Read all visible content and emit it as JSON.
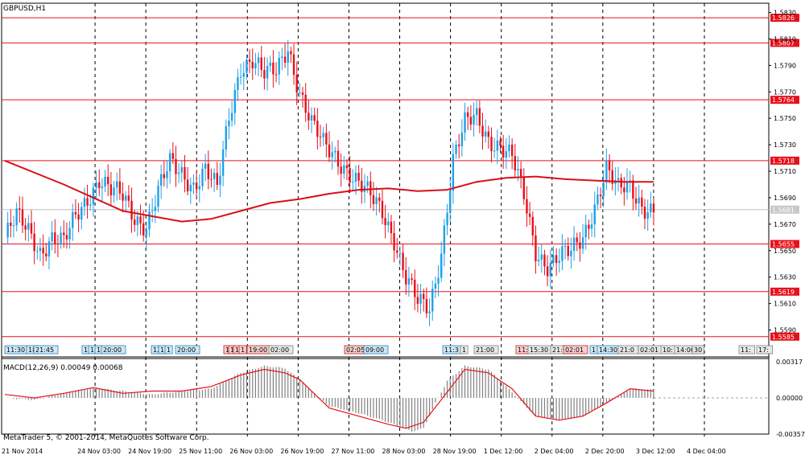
{
  "symbol": "GBPUSD,H1",
  "indicator_label": "MACD(12,26,9) 0.00049 0.00068",
  "copyright": "MetaTrader 5, © 2001-2014, MetaQuotes Software Corp.",
  "colors": {
    "bull": "#1ea0e8",
    "bear": "#e8101a",
    "level_line": "#e8101a",
    "ma_line": "#d81018",
    "signal_line": "#e8101a",
    "histogram": "#808080",
    "grid": "#000000"
  },
  "chart_data": [
    {
      "type": "candlestick",
      "timeframe": "H1",
      "x_labels": [
        "21 Nov 2014",
        "24 Nov 03:00",
        "24 Nov 19:00",
        "25 Nov 11:00",
        "26 Nov 03:00",
        "26 Nov 19:00",
        "27 Nov 11:00",
        "28 Nov 03:00",
        "28 Nov 19:00",
        "1 Dec 12:00",
        "2 Dec 04:00",
        "2 Dec 20:00",
        "3 Dec 12:00",
        "4 Dec 04:00"
      ],
      "y_ticks": [
        "1.5830",
        "1.5810",
        "1.5790",
        "1.5770",
        "1.5750",
        "1.5730",
        "1.5710",
        "1.5690",
        "1.5670",
        "1.5650",
        "1.5630",
        "1.5610",
        "1.5590"
      ],
      "ylim": [
        1.558,
        1.5837
      ],
      "levels": [
        {
          "label": "1.5826",
          "value": 1.5826
        },
        {
          "label": "1.5807",
          "value": 1.5807
        },
        {
          "label": "1.5764",
          "value": 1.5764
        },
        {
          "label": "1.5718",
          "value": 1.5718
        },
        {
          "label": "1.5655",
          "value": 1.5655
        },
        {
          "label": "1.5619",
          "value": 1.5619
        },
        {
          "label": "1.5585",
          "value": 1.5585
        }
      ],
      "current_price": {
        "label": "1.5681",
        "value": 1.5681
      },
      "close_path": [
        [
          0,
          1.566
        ],
        [
          4,
          1.5675
        ],
        [
          8,
          1.5665
        ],
        [
          12,
          1.565
        ],
        [
          16,
          1.566
        ],
        [
          20,
          1.5655
        ],
        [
          24,
          1.5675
        ],
        [
          28,
          1.569
        ],
        [
          32,
          1.5705
        ],
        [
          36,
          1.5695
        ],
        [
          40,
          1.569
        ],
        [
          44,
          1.5675
        ],
        [
          48,
          1.567
        ],
        [
          52,
          1.5695
        ],
        [
          56,
          1.5715
        ],
        [
          60,
          1.5708
        ],
        [
          64,
          1.57
        ],
        [
          68,
          1.5712
        ],
        [
          72,
          1.5695
        ],
        [
          76,
          1.575
        ],
        [
          80,
          1.579
        ],
        [
          84,
          1.5795
        ],
        [
          88,
          1.5782
        ],
        [
          92,
          1.5785
        ],
        [
          96,
          1.5805
        ],
        [
          100,
          1.577
        ],
        [
          104,
          1.5745
        ],
        [
          108,
          1.573
        ],
        [
          112,
          1.5722
        ],
        [
          116,
          1.5712
        ],
        [
          120,
          1.57
        ],
        [
          124,
          1.569
        ],
        [
          128,
          1.568
        ],
        [
          132,
          1.566
        ],
        [
          136,
          1.563
        ],
        [
          140,
          1.561
        ],
        [
          144,
          1.5605
        ],
        [
          148,
          1.565
        ],
        [
          152,
          1.572
        ],
        [
          156,
          1.5745
        ],
        [
          160,
          1.575
        ],
        [
          164,
          1.5735
        ],
        [
          168,
          1.573
        ],
        [
          172,
          1.572
        ],
        [
          176,
          1.569
        ],
        [
          180,
          1.565
        ],
        [
          184,
          1.564
        ],
        [
          188,
          1.5645
        ],
        [
          192,
          1.5648
        ],
        [
          196,
          1.566
        ],
        [
          200,
          1.5685
        ],
        [
          204,
          1.5712
        ],
        [
          208,
          1.5695
        ],
        [
          212,
          1.5698
        ],
        [
          216,
          1.5685
        ],
        [
          220,
          1.5681
        ]
      ],
      "moving_average": [
        [
          0,
          1.5718
        ],
        [
          20,
          1.57
        ],
        [
          40,
          1.568
        ],
        [
          60,
          1.5672
        ],
        [
          70,
          1.5674
        ],
        [
          80,
          1.568
        ],
        [
          90,
          1.5686
        ],
        [
          100,
          1.5689
        ],
        [
          110,
          1.5693
        ],
        [
          120,
          1.5696
        ],
        [
          130,
          1.5697
        ],
        [
          140,
          1.5695
        ],
        [
          150,
          1.5696
        ],
        [
          160,
          1.5702
        ],
        [
          170,
          1.5705
        ],
        [
          180,
          1.5706
        ],
        [
          190,
          1.5704
        ],
        [
          200,
          1.5703
        ],
        [
          210,
          1.5702
        ],
        [
          220,
          1.5702
        ]
      ]
    },
    {
      "type": "bar+line",
      "title": "MACD(12,26,9) 0.00049 0.00068",
      "y_ticks": [
        "0.00317",
        "0.00000",
        "-0.00357"
      ],
      "ylim": [
        -0.00357,
        0.00317
      ],
      "histogram": [
        [
          0,
          0.0
        ],
        [
          10,
          -0.0002
        ],
        [
          20,
          0.0004
        ],
        [
          30,
          0.0009
        ],
        [
          40,
          0.0006
        ],
        [
          50,
          0.0003
        ],
        [
          60,
          0.0006
        ],
        [
          70,
          0.0008
        ],
        [
          80,
          0.0022
        ],
        [
          88,
          0.0028
        ],
        [
          95,
          0.0026
        ],
        [
          100,
          0.0016
        ],
        [
          110,
          -0.0008
        ],
        [
          120,
          -0.0015
        ],
        [
          130,
          -0.0024
        ],
        [
          138,
          -0.0033
        ],
        [
          142,
          -0.003
        ],
        [
          146,
          -0.0005
        ],
        [
          150,
          0.0015
        ],
        [
          156,
          0.0028
        ],
        [
          164,
          0.0025
        ],
        [
          172,
          0.0005
        ],
        [
          180,
          -0.0018
        ],
        [
          188,
          -0.0022
        ],
        [
          196,
          -0.0018
        ],
        [
          204,
          -0.0005
        ],
        [
          212,
          0.0008
        ],
        [
          220,
          0.0007
        ]
      ],
      "signal": [
        [
          0,
          0.0003
        ],
        [
          10,
          0.0
        ],
        [
          20,
          0.0004
        ],
        [
          30,
          0.0009
        ],
        [
          40,
          0.0004
        ],
        [
          50,
          0.0006
        ],
        [
          60,
          0.0006
        ],
        [
          70,
          0.001
        ],
        [
          80,
          0.002
        ],
        [
          88,
          0.0025
        ],
        [
          95,
          0.0022
        ],
        [
          100,
          0.0016
        ],
        [
          110,
          -0.001
        ],
        [
          120,
          -0.0018
        ],
        [
          130,
          -0.0026
        ],
        [
          136,
          -0.003
        ],
        [
          142,
          -0.0024
        ],
        [
          150,
          0.0005
        ],
        [
          156,
          0.0025
        ],
        [
          164,
          0.0022
        ],
        [
          172,
          0.0008
        ],
        [
          180,
          -0.0018
        ],
        [
          188,
          -0.0022
        ],
        [
          196,
          -0.0018
        ],
        [
          204,
          -0.0005
        ],
        [
          212,
          0.0008
        ],
        [
          220,
          0.0006
        ]
      ]
    }
  ],
  "event_markers": [
    {
      "text": "11:30",
      "theme": "blue"
    },
    {
      "text": "18",
      "theme": "blue"
    },
    {
      "text": "21:45",
      "theme": "blue"
    },
    {
      "text": "1",
      "theme": "blue"
    },
    {
      "text": "1",
      "theme": "blue"
    },
    {
      "text": "1",
      "theme": "blue"
    },
    {
      "text": "20:00",
      "theme": "blue"
    },
    {
      "text": "12",
      "theme": "blue"
    },
    {
      "text": "1",
      "theme": "blue"
    },
    {
      "text": "1",
      "theme": "blue"
    },
    {
      "text": "20:00",
      "theme": "blue"
    },
    {
      "text": "1",
      "theme": "red"
    },
    {
      "text": "1",
      "theme": "red"
    },
    {
      "text": "1",
      "theme": "red"
    },
    {
      "text": "1",
      "theme": "red"
    },
    {
      "text": "19:00",
      "theme": "red"
    },
    {
      "text": "02:00",
      "theme": "gray"
    },
    {
      "text": "02:05",
      "theme": "red"
    },
    {
      "text": "09:00",
      "theme": "blue"
    },
    {
      "text": "11:3",
      "theme": "blue"
    },
    {
      "text": "1",
      "theme": "gray"
    },
    {
      "text": "21:00",
      "theme": "gray"
    },
    {
      "text": "11:",
      "theme": "red"
    },
    {
      "text": "15:30",
      "theme": "gray"
    },
    {
      "text": "21:0",
      "theme": "gray"
    },
    {
      "text": "02:01",
      "theme": "red"
    },
    {
      "text": "1",
      "theme": "blue"
    },
    {
      "text": "14:30",
      "theme": "blue"
    },
    {
      "text": "21:0",
      "theme": "gray"
    },
    {
      "text": "02:01",
      "theme": "gray"
    },
    {
      "text": "10:",
      "theme": "gray"
    },
    {
      "text": "14:00",
      "theme": "gray"
    },
    {
      "text": "30",
      "theme": "gray"
    },
    {
      "text": "11:",
      "theme": "gray"
    },
    {
      "text": "17:",
      "theme": "gray"
    }
  ]
}
